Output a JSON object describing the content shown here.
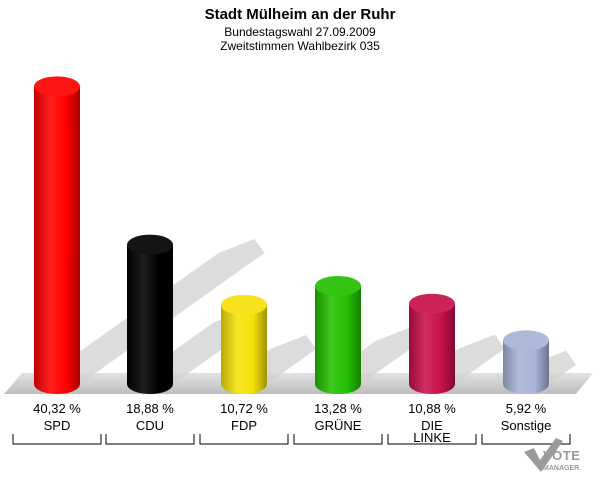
{
  "chart_data": {
    "type": "bar",
    "title": "Stadt Mülheim an der Ruhr",
    "subtitle_1": "Bundestagswahl 27.09.2009",
    "subtitle_2": "Zweitstimmen Wahlbezirk 035",
    "categories": [
      "SPD",
      "CDU",
      "FDP",
      "GRÜNE",
      "DIE LINKE",
      "Sonstige"
    ],
    "category_lines": [
      [
        "SPD"
      ],
      [
        "CDU"
      ],
      [
        "FDP"
      ],
      [
        "GRÜNE"
      ],
      [
        "DIE",
        "LINKE"
      ],
      [
        "Sonstige"
      ]
    ],
    "values": [
      40.32,
      18.88,
      10.72,
      13.28,
      10.88,
      5.92
    ],
    "value_labels": [
      "40,32 %",
      "18,88 %",
      "10,72 %",
      "13,28 %",
      "10,88 %",
      "5,92 %"
    ],
    "colors": [
      "#ff0000",
      "#000000",
      "#f5e10a",
      "#22c000",
      "#c8104a",
      "#a8b4d8"
    ],
    "ylim": [
      0,
      42
    ]
  },
  "logo": {
    "line1": "VOTE",
    "line2": "MANAGER"
  }
}
